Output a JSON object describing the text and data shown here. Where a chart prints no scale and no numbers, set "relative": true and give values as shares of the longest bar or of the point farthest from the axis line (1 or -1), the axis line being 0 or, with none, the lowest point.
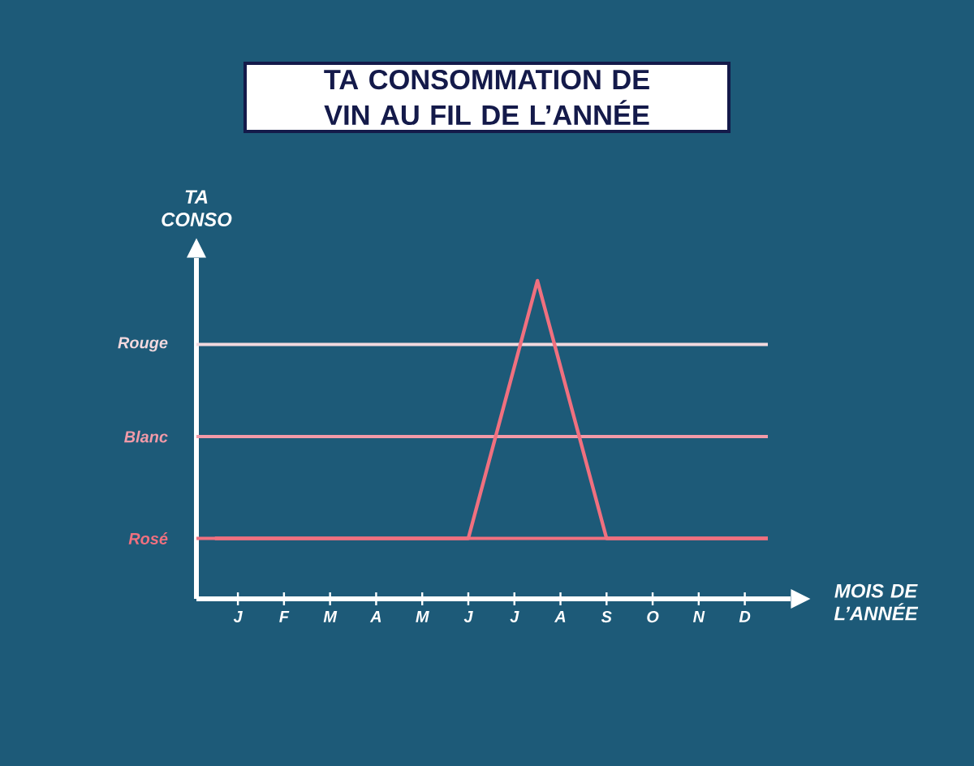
{
  "chart_data": {
    "type": "line",
    "title": "TA CONSOMMATION DE VIN AU FIL DE L’ANNÉE",
    "xlabel": "MOIS DE L’ANNÉE",
    "ylabel": "TA CONSO",
    "relative": true,
    "categories": [
      null,
      "J",
      null,
      "F",
      null,
      "M",
      null,
      "A",
      null,
      "M",
      null,
      "J",
      null,
      "J",
      null,
      "A",
      null,
      "S",
      null,
      "O",
      null,
      "N",
      null,
      "D",
      null
    ],
    "series": [
      {
        "color": "#f0707f",
        "values": [
          0.19,
          0.19,
          0.19,
          0.19,
          0.19,
          0.19,
          0.19,
          0.19,
          0.19,
          0.19,
          0.19,
          0.19,
          null,
          null,
          1,
          null,
          null,
          0.19,
          0.19,
          0.19,
          0.19,
          0.19,
          0.19,
          0.19,
          0.19
        ]
      }
    ],
    "ref_lines": [
      {
        "axis": "y",
        "value": 0.8,
        "label": "Rouge",
        "color": "#f2d9de"
      },
      {
        "axis": "y",
        "value": 0.51,
        "label": "Blanc",
        "color": "#f29aa8"
      },
      {
        "axis": "y",
        "value": 0.19,
        "label": "Rosé",
        "color": "#f0707f"
      }
    ]
  }
}
